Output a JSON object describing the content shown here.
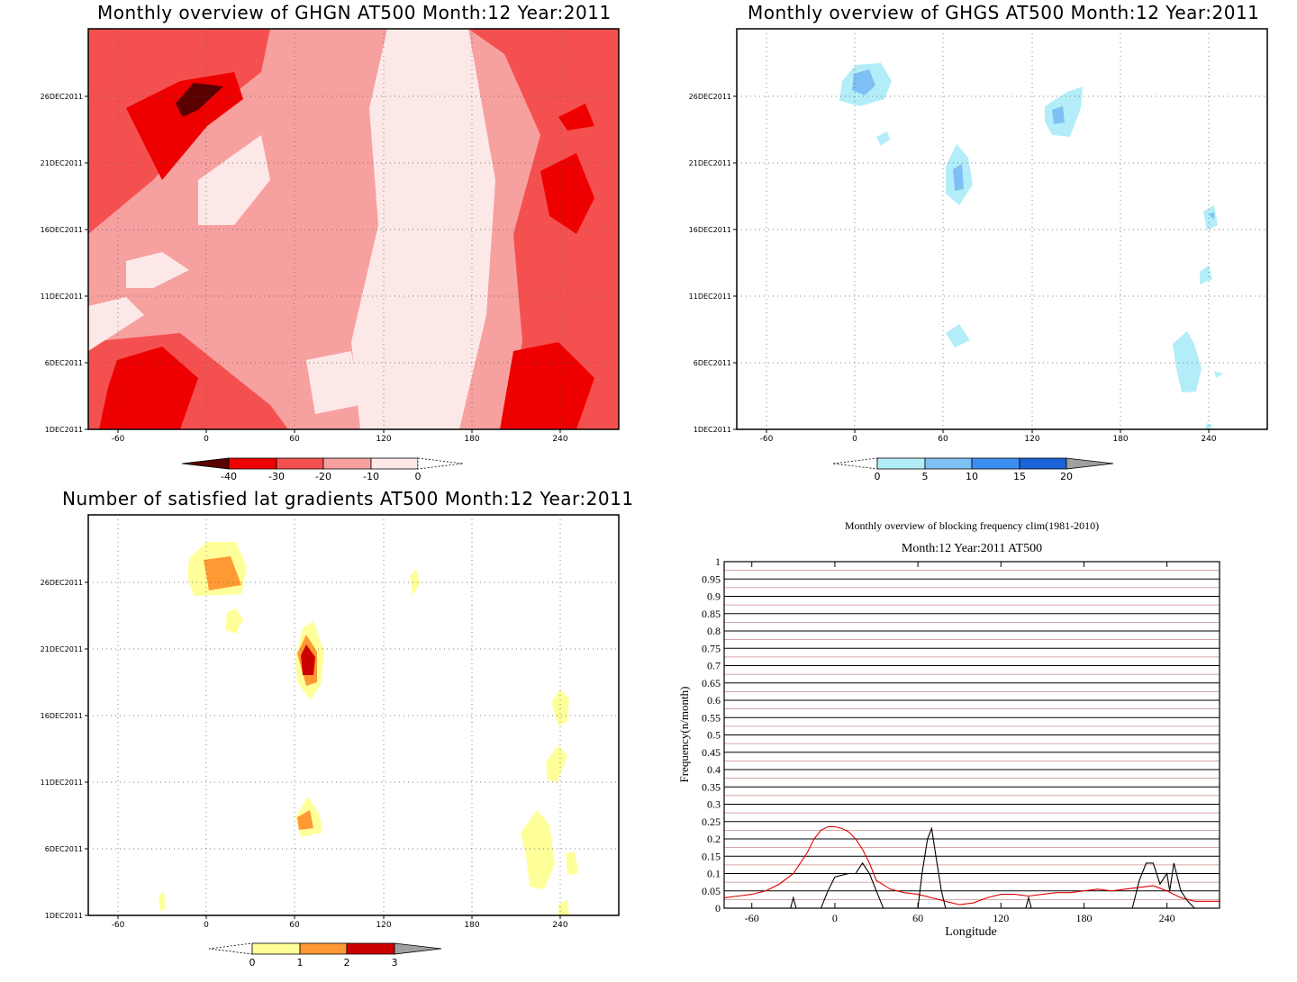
{
  "panels": {
    "ghgn": {
      "title": "Monthly overview of GHGN AT500 Month:12 Year:2011",
      "colorbar": {
        "labels": [
          "-40",
          "-30",
          "-20",
          "-10",
          "0"
        ],
        "colors": [
          "#5a0000",
          "#ee0000",
          "#f55050",
          "#f7a0a0",
          "#fde8e8"
        ]
      }
    },
    "ghgs": {
      "title": "Monthly overview of GHGS AT500 Month:12 Year:2011",
      "colorbar": {
        "labels": [
          "0",
          "5",
          "10",
          "15",
          "20"
        ],
        "colors": [
          "#b3eef8",
          "#7ec0f4",
          "#3c8ef0",
          "#1a62d8",
          "#a0a0a0"
        ]
      }
    },
    "grad": {
      "title": "Number of satisfied lat gradients AT500 Month:12 Year:2011",
      "colorbar": {
        "labels": [
          "0",
          "1",
          "2",
          "3"
        ],
        "colors": [
          "#ffff99",
          "#ff9933",
          "#cc0000",
          "#a0a0a0"
        ]
      }
    },
    "freq": {
      "title1": "Monthly overview of blocking frequency clim(1981-2010)",
      "title2": "Month:12 Year:2011   AT500"
    }
  },
  "map_axes": {
    "x_ticks": [
      "-60",
      "0",
      "60",
      "120",
      "180",
      "240"
    ],
    "y_ticks": [
      "1DEC2011",
      "6DEC2011",
      "11DEC2011",
      "16DEC2011",
      "21DEC2011",
      "26DEC2011"
    ]
  },
  "chart_data": [
    {
      "type": "heatmap",
      "title": "Monthly overview of GHGN AT500 Month:12 Year:2011",
      "x_ticks": [
        -60,
        0,
        60,
        120,
        180,
        240
      ],
      "y_ticks": [
        "1DEC2011",
        "6DEC2011",
        "11DEC2011",
        "16DEC2011",
        "21DEC2011",
        "26DEC2011"
      ],
      "levels": [
        -40,
        -30,
        -20,
        -10,
        0
      ],
      "colors": [
        "#5a0000",
        "#ee0000",
        "#f55050",
        "#f7a0a0",
        "#fde8e8"
      ]
    },
    {
      "type": "heatmap",
      "title": "Monthly overview of GHGS AT500 Month:12 Year:2011",
      "x_ticks": [
        -60,
        0,
        60,
        120,
        180,
        240
      ],
      "y_ticks": [
        "1DEC2011",
        "6DEC2011",
        "11DEC2011",
        "16DEC2011",
        "21DEC2011",
        "26DEC2011"
      ],
      "levels": [
        0,
        5,
        10,
        15,
        20
      ],
      "colors": [
        "#b3eef8",
        "#7ec0f4",
        "#3c8ef0",
        "#1a62d8",
        "#a0a0a0"
      ]
    },
    {
      "type": "heatmap",
      "title": "Number of satisfied lat gradients AT500 Month:12 Year:2011",
      "x_ticks": [
        -60,
        0,
        60,
        120,
        180,
        240
      ],
      "y_ticks": [
        "1DEC2011",
        "6DEC2011",
        "11DEC2011",
        "16DEC2011",
        "21DEC2011",
        "26DEC2011"
      ],
      "levels": [
        0,
        1,
        2,
        3
      ],
      "colors": [
        "#ffff99",
        "#ff9933",
        "#cc0000",
        "#a0a0a0"
      ]
    },
    {
      "type": "line",
      "title": "Monthly overview of blocking frequency clim(1981-2010)",
      "subtitle": "Month:12 Year:2011   AT500",
      "xlabel": "Longitude",
      "ylabel": "Frequency(n/month)",
      "xlim": [
        -80,
        278
      ],
      "ylim": [
        0,
        1
      ],
      "x_ticks": [
        -60,
        0,
        60,
        120,
        180,
        240
      ],
      "y_ticks": [
        "0",
        "0.05",
        "0.1",
        "0.15",
        "0.2",
        "0.25",
        "0.3",
        "0.35",
        "0.4",
        "0.45",
        "0.5",
        "0.55",
        "0.6",
        "0.65",
        "0.7",
        "0.75",
        "0.8",
        "0.85",
        "0.9",
        "0.95",
        "1"
      ],
      "series": [
        {
          "color": "#e00000",
          "x": [
            -80,
            -70,
            -60,
            -50,
            -40,
            -30,
            -20,
            -15,
            -10,
            -5,
            0,
            5,
            10,
            15,
            20,
            25,
            30,
            40,
            50,
            60,
            70,
            80,
            90,
            100,
            110,
            120,
            130,
            140,
            150,
            160,
            170,
            180,
            190,
            200,
            210,
            220,
            230,
            240,
            250,
            260,
            270,
            278
          ],
          "y": [
            0.03,
            0.035,
            0.04,
            0.05,
            0.07,
            0.1,
            0.16,
            0.2,
            0.225,
            0.235,
            0.235,
            0.23,
            0.22,
            0.2,
            0.17,
            0.13,
            0.08,
            0.055,
            0.045,
            0.04,
            0.03,
            0.02,
            0.01,
            0.015,
            0.03,
            0.04,
            0.04,
            0.035,
            0.04,
            0.045,
            0.045,
            0.05,
            0.055,
            0.05,
            0.055,
            0.06,
            0.065,
            0.05,
            0.03,
            0.02,
            0.02,
            0.02
          ]
        },
        {
          "color": "#000000",
          "x": [
            -80,
            -32,
            -30,
            -28,
            -10,
            -5,
            0,
            5,
            10,
            15,
            20,
            25,
            30,
            35,
            60,
            63,
            67,
            70,
            73,
            77,
            80,
            130,
            138,
            140,
            142,
            150,
            215,
            220,
            225,
            230,
            235,
            240,
            242,
            245,
            250,
            255,
            260,
            278
          ],
          "y": [
            0,
            0,
            0.03,
            0,
            0,
            0.05,
            0.09,
            0.095,
            0.1,
            0.1,
            0.13,
            0.1,
            0.05,
            0,
            0,
            0.1,
            0.2,
            0.23,
            0.15,
            0.05,
            0,
            0,
            0,
            0.03,
            0,
            0,
            0,
            0.08,
            0.13,
            0.13,
            0.07,
            0.1,
            0.05,
            0.13,
            0.05,
            0.02,
            0,
            0
          ]
        }
      ]
    }
  ]
}
